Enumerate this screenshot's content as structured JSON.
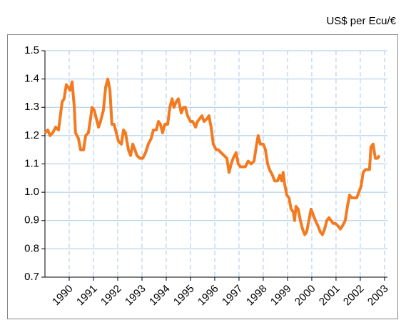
{
  "chart_data": {
    "type": "line",
    "y_axis_label": "US$ per Ecu/€",
    "x": [
      1989.0,
      1989.12,
      1989.21,
      1989.32,
      1989.44,
      1989.56,
      1989.65,
      1989.71,
      1989.79,
      1989.88,
      1989.97,
      1990.03,
      1990.12,
      1990.21,
      1990.26,
      1990.38,
      1990.47,
      1990.59,
      1990.68,
      1990.79,
      1990.88,
      1990.94,
      1991.03,
      1991.12,
      1991.21,
      1991.29,
      1991.41,
      1991.5,
      1991.59,
      1991.68,
      1991.76,
      1991.85,
      1991.94,
      1992.03,
      1992.15,
      1992.24,
      1992.32,
      1992.44,
      1992.53,
      1992.62,
      1992.71,
      1992.79,
      1992.91,
      1993.03,
      1993.15,
      1993.26,
      1993.38,
      1993.47,
      1993.59,
      1993.68,
      1993.76,
      1993.85,
      1993.94,
      1994.06,
      1994.15,
      1994.24,
      1994.32,
      1994.41,
      1994.5,
      1994.62,
      1994.71,
      1994.79,
      1994.88,
      1995.0,
      1995.09,
      1995.21,
      1995.29,
      1995.38,
      1995.47,
      1995.56,
      1995.68,
      1995.76,
      1995.85,
      1995.94,
      1996.06,
      1996.15,
      1996.26,
      1996.38,
      1996.5,
      1996.59,
      1996.68,
      1996.76,
      1996.88,
      1996.97,
      1997.06,
      1997.18,
      1997.26,
      1997.38,
      1997.5,
      1997.62,
      1997.71,
      1997.79,
      1997.88,
      1998.0,
      1998.09,
      1998.18,
      1998.26,
      1998.38,
      1998.47,
      1998.59,
      1998.68,
      1998.76,
      1998.82,
      1998.88,
      1998.97,
      1999.06,
      1999.15,
      1999.24,
      1999.29,
      1999.35,
      1999.44,
      1999.53,
      1999.62,
      1999.71,
      1999.79,
      1999.88,
      1999.97,
      2000.06,
      2000.15,
      2000.26,
      2000.35,
      2000.44,
      2000.53,
      2000.62,
      2000.71,
      2000.79,
      2000.88,
      2000.97,
      2001.09,
      2001.18,
      2001.26,
      2001.38,
      2001.47,
      2001.56,
      2001.65,
      2001.76,
      2001.85,
      2001.94,
      2002.03,
      2002.12,
      2002.21,
      2002.29,
      2002.38,
      2002.44,
      2002.53,
      2002.62,
      2002.71,
      2002.79
    ],
    "series": [
      {
        "color": "#f47a20",
        "values": [
          1.21,
          1.22,
          1.2,
          1.21,
          1.23,
          1.22,
          1.28,
          1.32,
          1.33,
          1.38,
          1.37,
          1.36,
          1.39,
          1.3,
          1.21,
          1.19,
          1.15,
          1.15,
          1.2,
          1.21,
          1.26,
          1.3,
          1.29,
          1.26,
          1.23,
          1.25,
          1.29,
          1.37,
          1.4,
          1.36,
          1.24,
          1.24,
          1.21,
          1.18,
          1.17,
          1.22,
          1.21,
          1.15,
          1.13,
          1.17,
          1.15,
          1.13,
          1.12,
          1.12,
          1.14,
          1.17,
          1.19,
          1.22,
          1.22,
          1.25,
          1.24,
          1.21,
          1.24,
          1.24,
          1.3,
          1.33,
          1.3,
          1.32,
          1.33,
          1.28,
          1.3,
          1.3,
          1.27,
          1.25,
          1.25,
          1.23,
          1.25,
          1.26,
          1.27,
          1.25,
          1.26,
          1.27,
          1.23,
          1.17,
          1.15,
          1.15,
          1.14,
          1.13,
          1.12,
          1.07,
          1.1,
          1.12,
          1.14,
          1.1,
          1.09,
          1.09,
          1.09,
          1.11,
          1.1,
          1.11,
          1.16,
          1.2,
          1.17,
          1.17,
          1.15,
          1.1,
          1.08,
          1.06,
          1.04,
          1.04,
          1.06,
          1.04,
          1.07,
          1.03,
          0.99,
          0.98,
          0.94,
          0.93,
          0.9,
          0.95,
          0.94,
          0.9,
          0.87,
          0.85,
          0.86,
          0.9,
          0.94,
          0.92,
          0.9,
          0.88,
          0.86,
          0.85,
          0.87,
          0.9,
          0.91,
          0.9,
          0.89,
          0.89,
          0.88,
          0.87,
          0.88,
          0.9,
          0.95,
          0.99,
          0.98,
          0.98,
          0.98,
          1.0,
          1.02,
          1.07,
          1.08,
          1.08,
          1.08,
          1.16,
          1.17,
          1.12,
          1.12,
          1.13
        ]
      }
    ],
    "xlim": [
      1989,
      2003.12
    ],
    "xticks": [
      1990,
      1991,
      1992,
      1993,
      1994,
      1995,
      1996,
      1997,
      1998,
      1999,
      2000,
      2001,
      2002,
      2003
    ],
    "ylim": [
      0.7,
      1.5
    ],
    "yticks": [
      0.7,
      0.8,
      0.9,
      {
        "value": 1,
        "label": "1.0"
      },
      1.1,
      1.2,
      1.3,
      1.4,
      1.5
    ],
    "grid": true
  }
}
